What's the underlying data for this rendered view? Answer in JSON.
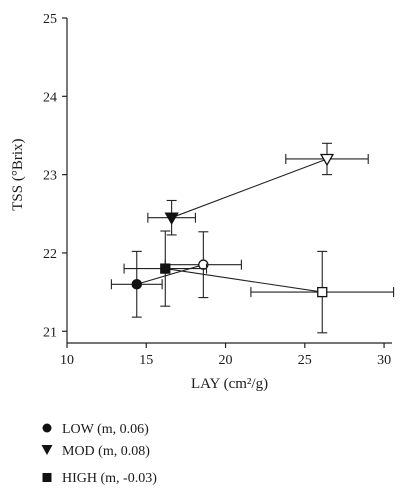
{
  "chart_data": {
    "type": "scatter",
    "xlabel": "LAY (cm²/g)",
    "ylabel": "TSS (°Brix)",
    "xlim": [
      10,
      30.5
    ],
    "ylim": [
      20.85,
      25
    ],
    "xticks": [
      10,
      15,
      20,
      25,
      30
    ],
    "yticks": [
      21,
      22,
      23,
      24,
      25
    ],
    "series": [
      {
        "name": "LOW (m, 0.06)",
        "marker": "circle",
        "points": [
          {
            "x": 14.4,
            "y": 21.6,
            "xerr": 1.6,
            "yerr": 0.42,
            "filled": true
          },
          {
            "x": 18.6,
            "y": 21.85,
            "xerr": 2.4,
            "yerr": 0.42,
            "filled": false
          }
        ]
      },
      {
        "name": "MOD (m, 0.08)",
        "marker": "triangle-down",
        "points": [
          {
            "x": 16.6,
            "y": 22.45,
            "xerr": 1.5,
            "yerr": 0.22,
            "filled": true
          },
          {
            "x": 26.4,
            "y": 23.2,
            "xerr": 2.6,
            "yerr": 0.2,
            "filled": false
          }
        ]
      },
      {
        "name": "HIGH (m, -0.03)",
        "marker": "square",
        "points": [
          {
            "x": 16.2,
            "y": 21.8,
            "xerr": 2.6,
            "yerr": 0.48,
            "filled": true
          },
          {
            "x": 26.1,
            "y": 21.5,
            "xerr": 4.5,
            "yerr": 0.52,
            "filled": false
          }
        ]
      }
    ],
    "legend_position": "below"
  },
  "legend": [
    {
      "label": "LOW (m, 0.06)",
      "marker": "circle"
    },
    {
      "label": "MOD (m, 0.08)",
      "marker": "triangle-down"
    },
    {
      "label": "HIGH (m, -0.03)",
      "marker": "square"
    }
  ]
}
